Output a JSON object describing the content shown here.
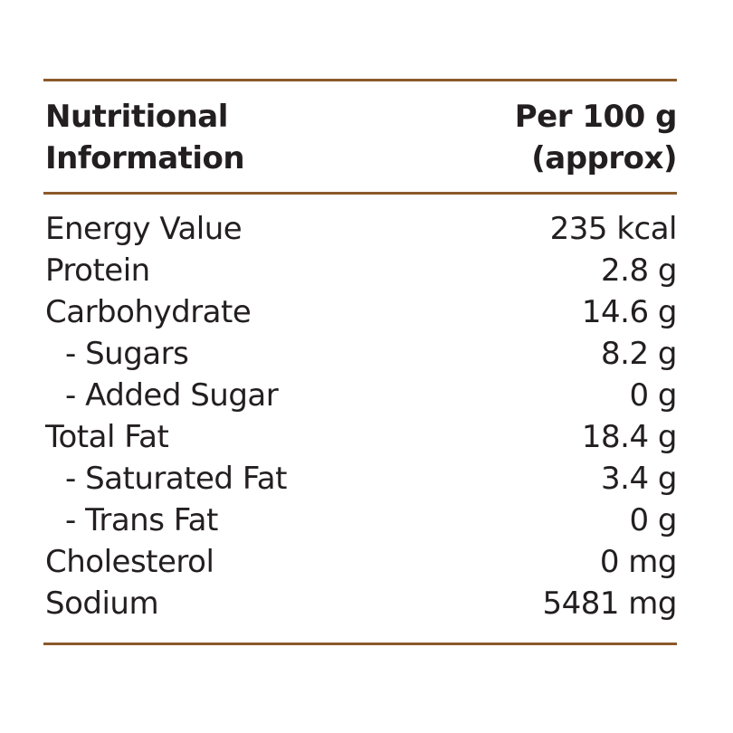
{
  "header": {
    "left": [
      "Nutritional",
      "Information"
    ],
    "right": [
      "Per 100 g",
      "(approx)"
    ]
  },
  "table": {
    "rows": [
      [
        "Energy Value",
        "235 kcal"
      ],
      [
        "Protein",
        "2.8 g"
      ],
      [
        "Carbohydrate",
        "14.6 g"
      ],
      [
        "- Sugars",
        "8.2 g"
      ],
      [
        "- Added Sugar",
        "0 g"
      ],
      [
        "Total Fat",
        "18.4 g"
      ],
      [
        "- Saturated Fat",
        "3.4 g"
      ],
      [
        "- Trans Fat",
        "0 g"
      ],
      [
        "Cholesterol",
        "0 mg"
      ],
      [
        "Sodium",
        "5481 mg"
      ]
    ]
  }
}
